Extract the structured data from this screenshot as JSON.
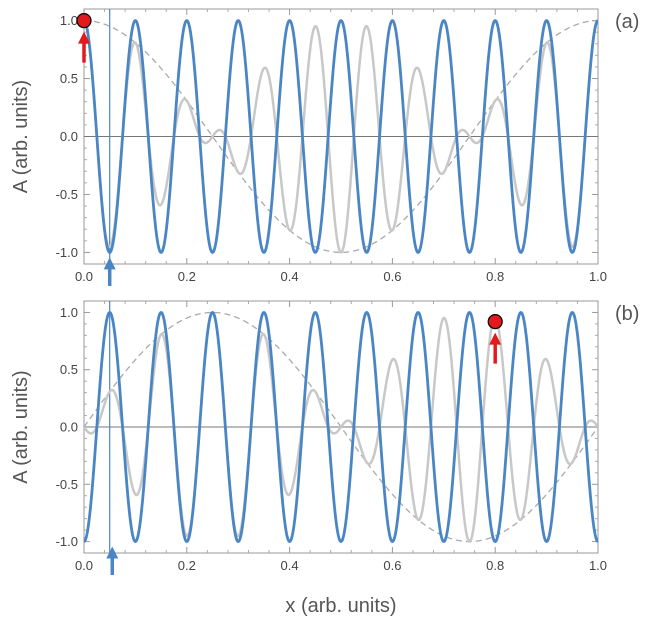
{
  "chart_data": [
    {
      "type": "line",
      "panel_label": "(a)",
      "ylabel": "A (arb. units)",
      "xlabel": "",
      "xlim": [
        0,
        1
      ],
      "ylim": [
        -1.1,
        1.1
      ],
      "x_ticks": [
        "0.0",
        "0.2",
        "0.4",
        "0.6",
        "0.8",
        "1.0"
      ],
      "y_ticks": [
        "-1.0",
        "-0.5",
        "0.0",
        "0.5",
        "1.0"
      ],
      "colors": {
        "carrier": "#4a86c5",
        "product": "#c8c8c8",
        "envelope": "#aaaaaa",
        "marker": "#e3191c",
        "arrow_blue": "#4a86c5",
        "arrow_red": "#e3191c"
      },
      "series": [
        {
          "kind": "carrier",
          "function": "cos",
          "frequency": 10,
          "phase": 0
        },
        {
          "kind": "envelope",
          "function": "cos",
          "frequency": 1,
          "phase": 0
        },
        {
          "kind": "product"
        }
      ],
      "vline_x": 0.05,
      "blue_arrow": {
        "x": 0.05,
        "y": -1.0
      },
      "red_marker": {
        "x": 0.0,
        "y": 1.0
      }
    },
    {
      "type": "line",
      "panel_label": "(b)",
      "ylabel": "A (arb. units)",
      "xlabel": "x (arb. units)",
      "xlim": [
        0,
        1
      ],
      "ylim": [
        -1.1,
        1.1
      ],
      "x_ticks": [
        "0.0",
        "0.2",
        "0.4",
        "0.6",
        "0.8",
        "1.0"
      ],
      "y_ticks": [
        "-1.0",
        "-0.5",
        "0.0",
        "0.5",
        "1.0"
      ],
      "colors": {
        "carrier": "#4a86c5",
        "product": "#c8c8c8",
        "envelope": "#aaaaaa",
        "marker": "#e3191c",
        "arrow_blue": "#4a86c5",
        "arrow_red": "#e3191c"
      },
      "series": [
        {
          "kind": "carrier",
          "function": "cos",
          "frequency": 10,
          "phase": -0.5
        },
        {
          "kind": "envelope",
          "function": "cos",
          "frequency": 1,
          "phase": -1.25
        },
        {
          "kind": "product"
        }
      ],
      "vline_x": 0.05,
      "blue_arrow": {
        "x": 0.055,
        "y": -1.0
      },
      "red_marker": {
        "x": 0.8,
        "y": 0.92
      }
    }
  ]
}
